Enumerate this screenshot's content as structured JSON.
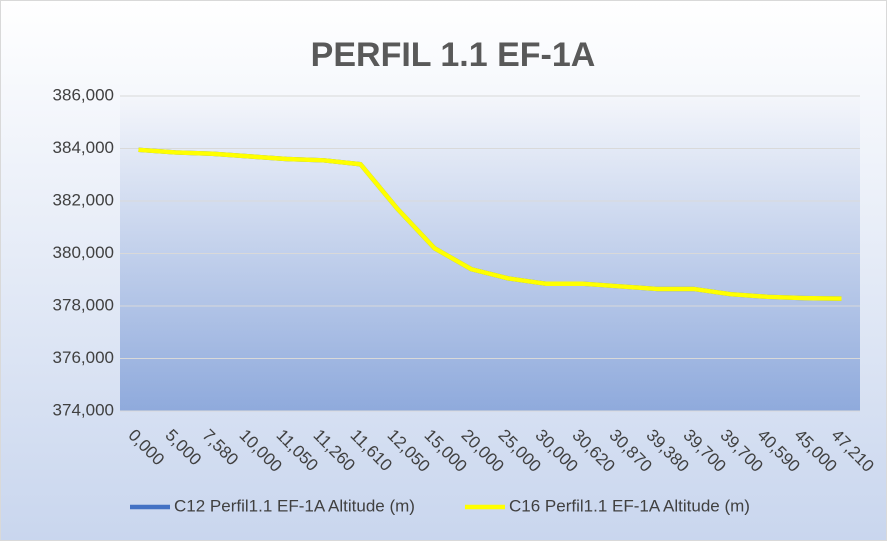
{
  "chart_data": {
    "type": "line",
    "title": "PERFIL 1.1 EF-1A",
    "categories": [
      "0,000",
      "5,000",
      "7,580",
      "10,000",
      "11,050",
      "11,260",
      "11,610",
      "12,050",
      "15,000",
      "20,000",
      "25,000",
      "30,000",
      "30,620",
      "30,870",
      "39,380",
      "39,700",
      "39,700",
      "40,590",
      "45,000",
      "47,210"
    ],
    "series": [
      {
        "name": "C12 Perfil1.1 EF-1A Altitude (m)",
        "color": "#4472c4",
        "values": [
          383.95,
          383.85,
          383.8,
          383.7,
          383.6,
          383.55,
          383.4,
          381.7,
          380.2,
          379.4,
          379.05,
          378.85,
          378.85,
          378.75,
          378.65,
          378.65,
          378.45,
          378.35,
          378.3,
          378.28
        ]
      },
      {
        "name": "C16 Perfil1.1 EF-1A Altitude (m)",
        "color": "#ffff00",
        "values": [
          383.95,
          383.85,
          383.8,
          383.7,
          383.6,
          383.55,
          383.4,
          381.7,
          380.2,
          379.4,
          379.05,
          378.85,
          378.85,
          378.75,
          378.65,
          378.65,
          378.45,
          378.35,
          378.3,
          378.28
        ]
      }
    ],
    "ylim": [
      374,
      386
    ],
    "yticks": [
      {
        "value": 374,
        "label": "374,000"
      },
      {
        "value": 376,
        "label": "376,000"
      },
      {
        "value": 378,
        "label": "378,000"
      },
      {
        "value": 380,
        "label": "380,000"
      },
      {
        "value": 382,
        "label": "382,000"
      },
      {
        "value": 384,
        "label": "384,000"
      },
      {
        "value": 386,
        "label": "386,000"
      }
    ],
    "grid": true,
    "legend": "bottom"
  }
}
